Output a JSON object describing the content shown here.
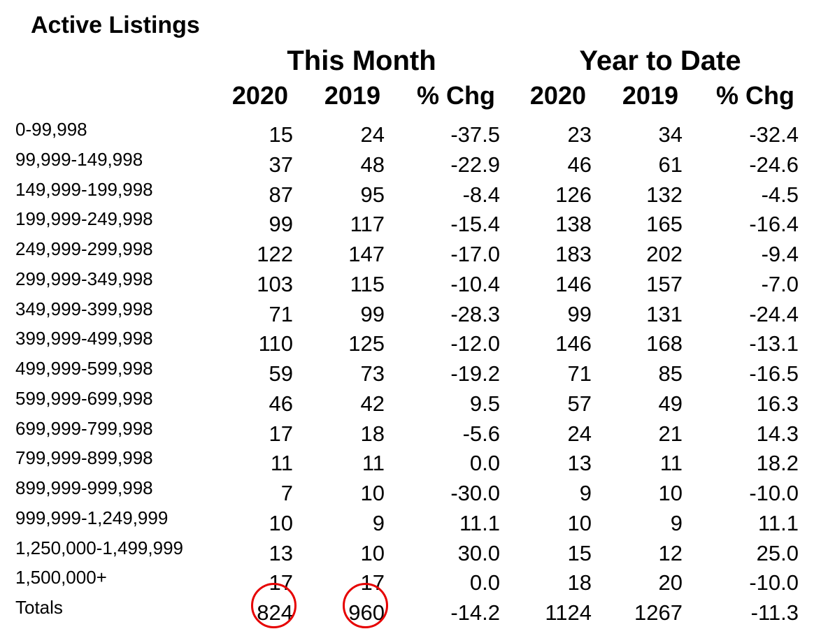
{
  "title": "Active Listings",
  "groups": {
    "this_month": "This Month",
    "year_to_date": "Year to Date"
  },
  "columns": [
    "2020",
    "2019",
    "% Chg",
    "2020",
    "2019",
    "% Chg"
  ],
  "rows": [
    {
      "range": "0-99,998",
      "values": [
        "15",
        "24",
        "-37.5",
        "23",
        "34",
        "-32.4"
      ]
    },
    {
      "range": "99,999-149,998",
      "values": [
        "37",
        "48",
        "-22.9",
        "46",
        "61",
        "-24.6"
      ]
    },
    {
      "range": "149,999-199,998",
      "values": [
        "87",
        "95",
        "-8.4",
        "126",
        "132",
        "-4.5"
      ]
    },
    {
      "range": "199,999-249,998",
      "values": [
        "99",
        "117",
        "-15.4",
        "138",
        "165",
        "-16.4"
      ]
    },
    {
      "range": "249,999-299,998",
      "values": [
        "122",
        "147",
        "-17.0",
        "183",
        "202",
        "-9.4"
      ]
    },
    {
      "range": "299,999-349,998",
      "values": [
        "103",
        "115",
        "-10.4",
        "146",
        "157",
        "-7.0"
      ]
    },
    {
      "range": "349,999-399,998",
      "values": [
        "71",
        "99",
        "-28.3",
        "99",
        "131",
        "-24.4"
      ]
    },
    {
      "range": "399,999-499,998",
      "values": [
        "110",
        "125",
        "-12.0",
        "146",
        "168",
        "-13.1"
      ]
    },
    {
      "range": "499,999-599,998",
      "values": [
        "59",
        "73",
        "-19.2",
        "71",
        "85",
        "-16.5"
      ]
    },
    {
      "range": "599,999-699,998",
      "values": [
        "46",
        "42",
        "9.5",
        "57",
        "49",
        "16.3"
      ]
    },
    {
      "range": "699,999-799,998",
      "values": [
        "17",
        "18",
        "-5.6",
        "24",
        "21",
        "14.3"
      ]
    },
    {
      "range": "799,999-899,998",
      "values": [
        "11",
        "11",
        "0.0",
        "13",
        "11",
        "18.2"
      ]
    },
    {
      "range": "899,999-999,998",
      "values": [
        "7",
        "10",
        "-30.0",
        "9",
        "10",
        "-10.0"
      ]
    },
    {
      "range": "999,999-1,249,999",
      "values": [
        "10",
        "9",
        "11.1",
        "10",
        "9",
        "11.1"
      ]
    },
    {
      "range": "1,250,000-1,499,999",
      "values": [
        "13",
        "10",
        "30.0",
        "15",
        "12",
        "25.0"
      ]
    },
    {
      "range": "1,500,000+",
      "values": [
        "17",
        "17",
        "0.0",
        "18",
        "20",
        "-10.0"
      ]
    },
    {
      "range": "Totals",
      "values": [
        "824",
        "960",
        "-14.2",
        "1124",
        "1267",
        "-11.3"
      ]
    }
  ],
  "annotation_color": "#e60000"
}
